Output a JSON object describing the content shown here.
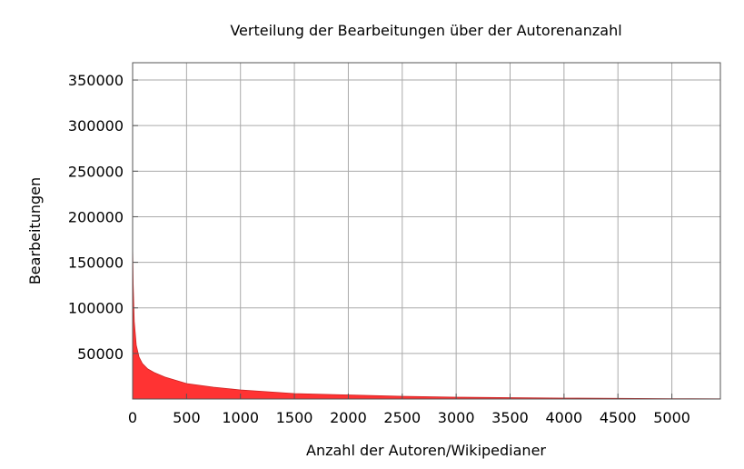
{
  "chart_data": {
    "type": "area",
    "title": "Verteilung der Bearbeitungen über der Autorenanzahl",
    "xlabel": "Anzahl der Autoren/Wikipedianer",
    "ylabel": "Bearbeitungen",
    "xlim": [
      0,
      5450
    ],
    "ylim": [
      0,
      369000
    ],
    "xticks": [
      0,
      500,
      1000,
      1500,
      2000,
      2500,
      3000,
      3500,
      4000,
      4500,
      5000
    ],
    "yticks": [
      50000,
      100000,
      150000,
      200000,
      250000,
      300000,
      350000
    ],
    "grid": true,
    "fill_color": "#ff3333",
    "series": [
      {
        "x": [
          0,
          5,
          15,
          34,
          60,
          90,
          140,
          200,
          300,
          500,
          750,
          1000,
          1500,
          2000,
          2500,
          3000,
          3500,
          4000,
          4500,
          5000,
          5450
        ],
        "y": [
          170000,
          126000,
          85000,
          59000,
          46000,
          39000,
          33000,
          29000,
          24000,
          17000,
          13000,
          10000,
          6000,
          4500,
          3000,
          2000,
          1500,
          1000,
          700,
          400,
          200
        ]
      }
    ]
  }
}
